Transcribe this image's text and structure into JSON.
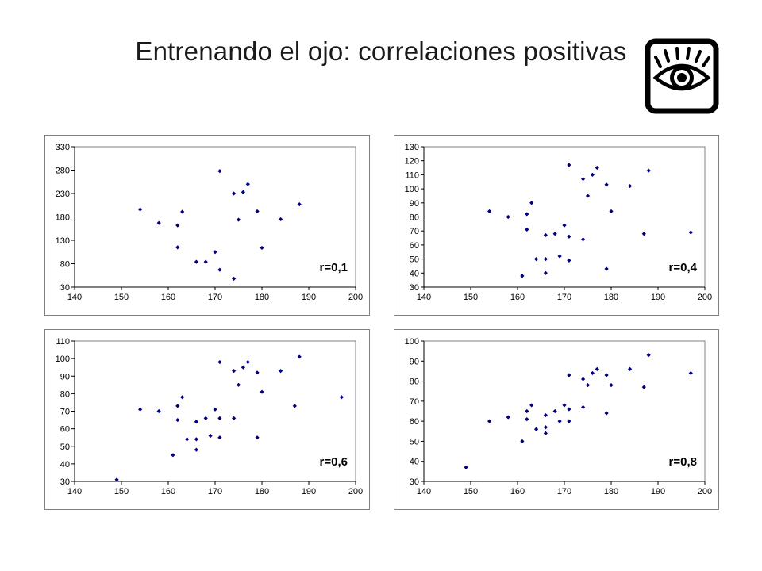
{
  "title": "Entrenando el ojo: correlaciones positivas",
  "icon": "eye-icon",
  "colors": {
    "point": "#000080",
    "frame": "#808080",
    "axis": "#000000"
  },
  "chart_data": [
    {
      "type": "scatter",
      "annotation": "r=0,1",
      "xlim": [
        140,
        200
      ],
      "ylim": [
        30,
        330
      ],
      "xticks": [
        140,
        150,
        160,
        170,
        180,
        190,
        200
      ],
      "yticks": [
        30,
        80,
        130,
        180,
        230,
        280,
        330
      ],
      "grid": false,
      "points": [
        [
          154,
          196
        ],
        [
          158,
          167
        ],
        [
          162,
          162
        ],
        [
          163,
          191
        ],
        [
          162,
          115
        ],
        [
          166,
          84
        ],
        [
          168,
          84
        ],
        [
          170,
          105
        ],
        [
          171,
          67
        ],
        [
          171,
          278
        ],
        [
          174,
          230
        ],
        [
          174,
          48
        ],
        [
          175,
          174
        ],
        [
          176,
          233
        ],
        [
          177,
          250
        ],
        [
          179,
          192
        ],
        [
          180,
          114
        ],
        [
          184,
          175
        ],
        [
          188,
          207
        ]
      ]
    },
    {
      "type": "scatter",
      "annotation": "r=0,4",
      "xlim": [
        140,
        200
      ],
      "ylim": [
        30,
        130
      ],
      "xticks": [
        140,
        150,
        160,
        170,
        180,
        190,
        200
      ],
      "yticks": [
        30,
        40,
        50,
        60,
        70,
        80,
        90,
        100,
        110,
        120,
        130
      ],
      "grid": false,
      "points": [
        [
          154,
          84
        ],
        [
          158,
          80
        ],
        [
          161,
          38
        ],
        [
          162,
          82
        ],
        [
          162,
          71
        ],
        [
          163,
          90
        ],
        [
          164,
          50
        ],
        [
          166,
          67
        ],
        [
          166,
          50
        ],
        [
          166,
          40
        ],
        [
          168,
          68
        ],
        [
          169,
          52
        ],
        [
          170,
          74
        ],
        [
          171,
          66
        ],
        [
          171,
          49
        ],
        [
          171,
          117
        ],
        [
          174,
          64
        ],
        [
          174,
          107
        ],
        [
          175,
          95
        ],
        [
          176,
          110
        ],
        [
          177,
          115
        ],
        [
          179,
          103
        ],
        [
          179,
          43
        ],
        [
          180,
          84
        ],
        [
          184,
          102
        ],
        [
          187,
          68
        ],
        [
          188,
          113
        ],
        [
          197,
          69
        ]
      ]
    },
    {
      "type": "scatter",
      "annotation": "r=0,6",
      "xlim": [
        140,
        200
      ],
      "ylim": [
        30,
        110
      ],
      "xticks": [
        140,
        150,
        160,
        170,
        180,
        190,
        200
      ],
      "yticks": [
        30,
        40,
        50,
        60,
        70,
        80,
        90,
        100,
        110
      ],
      "grid": false,
      "points": [
        [
          149,
          31
        ],
        [
          154,
          71
        ],
        [
          158,
          70
        ],
        [
          161,
          45
        ],
        [
          162,
          65
        ],
        [
          162,
          73
        ],
        [
          163,
          78
        ],
        [
          164,
          54
        ],
        [
          166,
          64
        ],
        [
          166,
          48
        ],
        [
          166,
          54
        ],
        [
          168,
          66
        ],
        [
          169,
          56
        ],
        [
          170,
          71
        ],
        [
          171,
          66
        ],
        [
          171,
          55
        ],
        [
          171,
          98
        ],
        [
          174,
          66
        ],
        [
          174,
          93
        ],
        [
          175,
          85
        ],
        [
          176,
          95
        ],
        [
          177,
          98
        ],
        [
          179,
          92
        ],
        [
          179,
          55
        ],
        [
          180,
          81
        ],
        [
          184,
          93
        ],
        [
          187,
          73
        ],
        [
          188,
          101
        ],
        [
          197,
          78
        ]
      ]
    },
    {
      "type": "scatter",
      "annotation": "r=0,8",
      "xlim": [
        140,
        200
      ],
      "ylim": [
        30,
        100
      ],
      "xticks": [
        140,
        150,
        160,
        170,
        180,
        190,
        200
      ],
      "yticks": [
        30,
        40,
        50,
        60,
        70,
        80,
        90,
        100
      ],
      "grid": false,
      "points": [
        [
          149,
          37
        ],
        [
          154,
          60
        ],
        [
          158,
          62
        ],
        [
          161,
          50
        ],
        [
          162,
          61
        ],
        [
          162,
          65
        ],
        [
          163,
          68
        ],
        [
          164,
          56
        ],
        [
          166,
          54
        ],
        [
          166,
          57
        ],
        [
          166,
          63
        ],
        [
          168,
          65
        ],
        [
          169,
          60
        ],
        [
          170,
          68
        ],
        [
          171,
          60
        ],
        [
          171,
          66
        ],
        [
          171,
          83
        ],
        [
          174,
          67
        ],
        [
          174,
          81
        ],
        [
          175,
          78
        ],
        [
          176,
          84
        ],
        [
          177,
          86
        ],
        [
          179,
          83
        ],
        [
          179,
          64
        ],
        [
          180,
          78
        ],
        [
          184,
          86
        ],
        [
          187,
          77
        ],
        [
          188,
          93
        ],
        [
          197,
          84
        ]
      ]
    }
  ]
}
